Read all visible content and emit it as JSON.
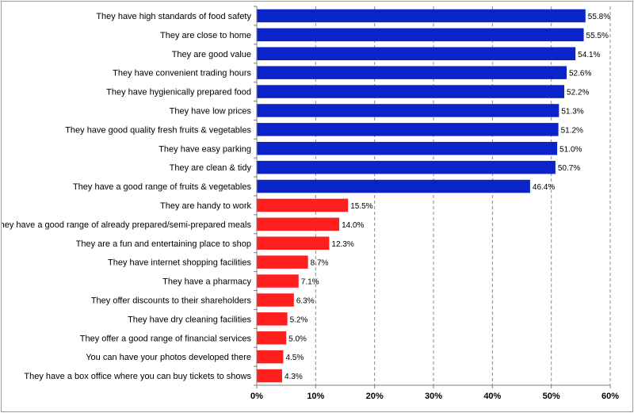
{
  "chart_data": {
    "type": "bar",
    "orientation": "horizontal",
    "title": "",
    "xlabel": "",
    "ylabel": "",
    "xlim": [
      0,
      60
    ],
    "ticks": [
      0,
      10,
      20,
      30,
      40,
      50,
      60
    ],
    "tick_labels": [
      "0%",
      "10%",
      "20%",
      "30%",
      "40%",
      "50%",
      "60%"
    ],
    "grid": "vertical dashed",
    "legend": "none",
    "colors": {
      "top_group": "#0a24c8",
      "bottom_group": "#ff1f1f"
    },
    "categories": [
      "They have high standards of food safety",
      "They are close to home",
      "They are good value",
      "They have convenient trading hours",
      "They have hygienically prepared food",
      "They have low prices",
      "They have good quality fresh fruits & vegetables",
      "They have easy parking",
      "They are clean & tidy",
      "They have a good range of fruits & vegetables",
      "They are handy to work",
      "They have a good range of already prepared/semi-prepared meals",
      "They are a fun and entertaining place to shop",
      "They have internet shopping facilities",
      "They have a pharmacy",
      "They offer discounts to their shareholders",
      "They have dry cleaning facilities",
      "They offer a good range of financial services",
      "You can have your photos developed there",
      "They have a box office where you can buy tickets to shows"
    ],
    "values": [
      55.8,
      55.5,
      54.1,
      52.6,
      52.2,
      51.3,
      51.2,
      51.0,
      50.7,
      46.4,
      15.5,
      14.0,
      12.3,
      8.7,
      7.1,
      6.3,
      5.2,
      5.0,
      4.5,
      4.3
    ],
    "value_labels": [
      "55.8%",
      "55.5%",
      "54.1%",
      "52.6%",
      "52.2%",
      "51.3%",
      "51.2%",
      "51.0%",
      "50.7%",
      "46.4%",
      "15.5%",
      "14.0%",
      "12.3%",
      "8.7%",
      "7.1%",
      "6.3%",
      "5.2%",
      "5.0%",
      "4.5%",
      "4.3%"
    ],
    "group": [
      "top",
      "top",
      "top",
      "top",
      "top",
      "top",
      "top",
      "top",
      "top",
      "top",
      "bottom",
      "bottom",
      "bottom",
      "bottom",
      "bottom",
      "bottom",
      "bottom",
      "bottom",
      "bottom",
      "bottom"
    ]
  }
}
